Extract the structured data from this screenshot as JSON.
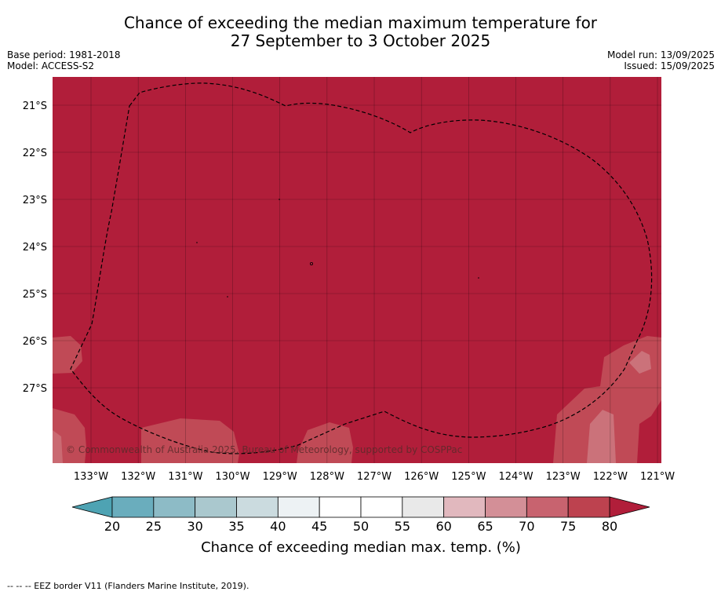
{
  "header": {
    "title_line1": "Chance of exceeding the median maximum temperature for",
    "title_line2": "27 September to 3 October 2025",
    "base_period": "Base period: 1981-2018",
    "model": "Model: ACCESS-S2",
    "model_run": "Model run: 13/09/2025",
    "issued": "Issued: 15/09/2025"
  },
  "map": {
    "background_color": "#b11e3a",
    "lon_labels": [
      "133°W",
      "132°W",
      "131°W",
      "130°W",
      "129°W",
      "128°W",
      "127°W",
      "126°W",
      "125°W",
      "124°W",
      "123°W",
      "122°W",
      "121°W"
    ],
    "lat_labels": [
      "21°S",
      "22°S",
      "23°S",
      "24°S",
      "25°S",
      "26°S",
      "27°S"
    ],
    "copyright": "© Commonwealth of Australia 2025, Bureau of Meteorology, supported by COSPPac"
  },
  "colorbar": {
    "ticks": [
      "20",
      "25",
      "30",
      "35",
      "40",
      "45",
      "50",
      "55",
      "60",
      "65",
      "70",
      "75",
      "80"
    ],
    "colors": [
      "#6aadbd",
      "#8dbbc6",
      "#aac8ce",
      "#cbdbdf",
      "#edf2f4",
      "#ffffff",
      "#ffffff",
      "#e9e9e9",
      "#e1b8be",
      "#d38f97",
      "#c8636f",
      "#bd424f"
    ],
    "low_extend_color": "#4ea3b3",
    "high_extend_color": "#b11e3a",
    "label": "Chance of exceeding median max. temp. (%)"
  },
  "footnote": "--  --  -- EEZ border V11 (Flanders Marine Institute, 2019)."
}
